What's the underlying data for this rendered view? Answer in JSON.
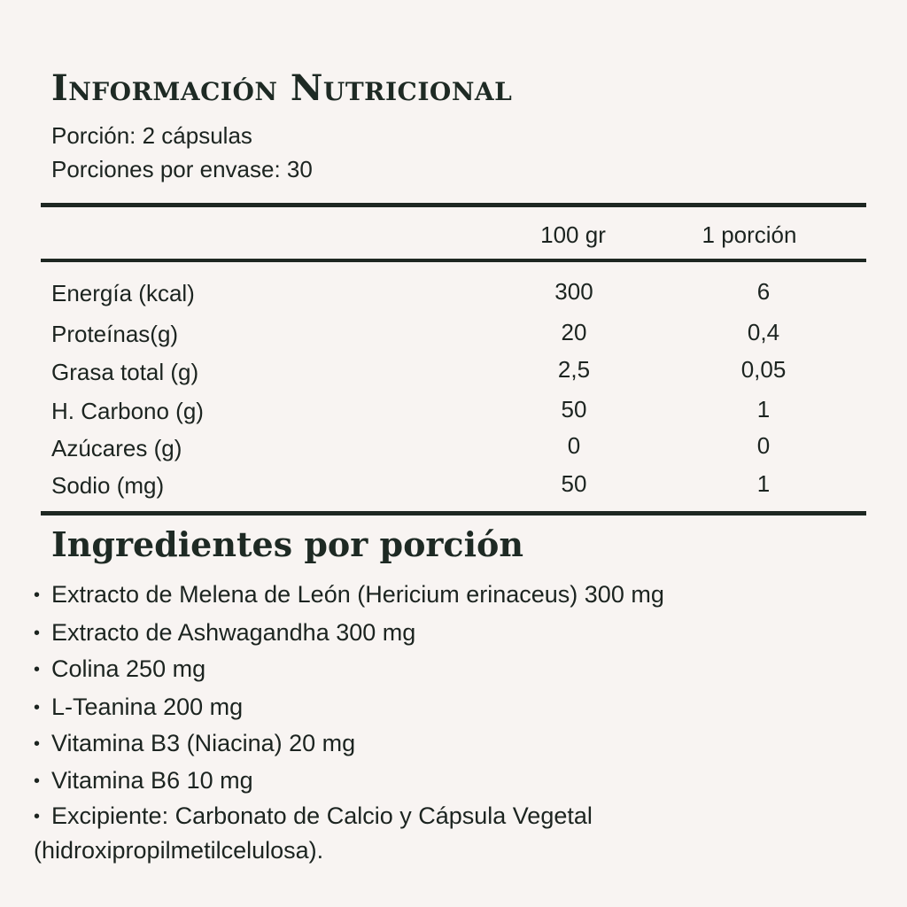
{
  "nutrition": {
    "title": "Información Nutricional",
    "serving_size": "Porción: 2 cápsulas",
    "servings_per_container": "Porciones por envase: 30",
    "columns": [
      "100 gr",
      "1 porción"
    ],
    "rows": [
      {
        "label": "Energía (kcal)",
        "per_100": "300",
        "per_serving": "6"
      },
      {
        "label": "Proteínas(g)",
        "per_100": "20",
        "per_serving": "0,4"
      },
      {
        "label": "Grasa total (g)",
        "per_100": "2,5",
        "per_serving": "0,05"
      },
      {
        "label": "H. Carbono (g)",
        "per_100": "50",
        "per_serving": "1"
      },
      {
        "label": "Azúcares (g)",
        "per_100": "0",
        "per_serving": "0"
      },
      {
        "label": "Sodio (mg)",
        "per_100": "50",
        "per_serving": "1"
      }
    ]
  },
  "ingredients": {
    "title": "Ingredientes por porción",
    "bullet": "•",
    "items": [
      "Extracto de Melena de León (Hericium erinaceus) 300 mg",
      "Extracto de Ashwagandha 300 mg",
      "Colina 250 mg",
      "L-Teanina 200 mg",
      "Vitamina B3 (Niacina) 20 mg",
      "Vitamina B6 10 mg",
      "Excipiente: Carbonato de Calcio y Cápsula Vegetal (hidroxipropilmetilcelulosa)."
    ]
  }
}
